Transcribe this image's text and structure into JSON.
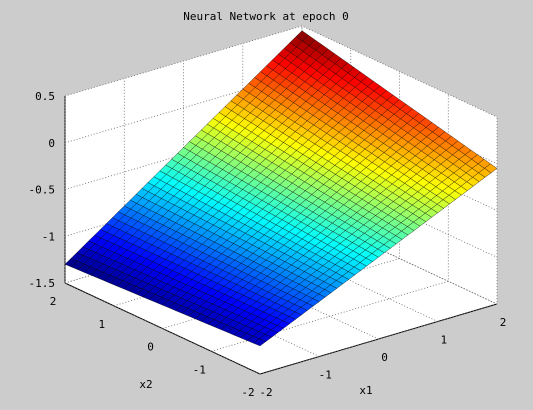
{
  "chart_data": {
    "type": "surface",
    "title": "Neural Network at epoch 0",
    "xlabel": "x1",
    "ylabel": "x2",
    "zlabel": "",
    "xlim": [
      -2,
      2
    ],
    "ylim": [
      -2,
      2
    ],
    "zlim": [
      -1.5,
      0.5
    ],
    "x_ticks": [
      "-2",
      "-1",
      "0",
      "1",
      "2"
    ],
    "y_ticks": [
      "-2",
      "-1",
      "0",
      "1",
      "2"
    ],
    "z_ticks": [
      "-1.5",
      "-1",
      "-0.5",
      "0",
      "0.5"
    ],
    "grid": true,
    "colormap": "jet",
    "surface_corners": [
      {
        "x1": -2,
        "x2": -2,
        "z": -1.2
      },
      {
        "x1": 2,
        "x2": -2,
        "z": -0.05
      },
      {
        "x1": -2,
        "x2": 2,
        "z": -1.3
      },
      {
        "x1": 2,
        "x2": 2,
        "z": 0.45
      }
    ]
  },
  "colors": {
    "figure_background": "#cccccc",
    "axes_background": "#ffffff",
    "grid_line": "#666666"
  }
}
